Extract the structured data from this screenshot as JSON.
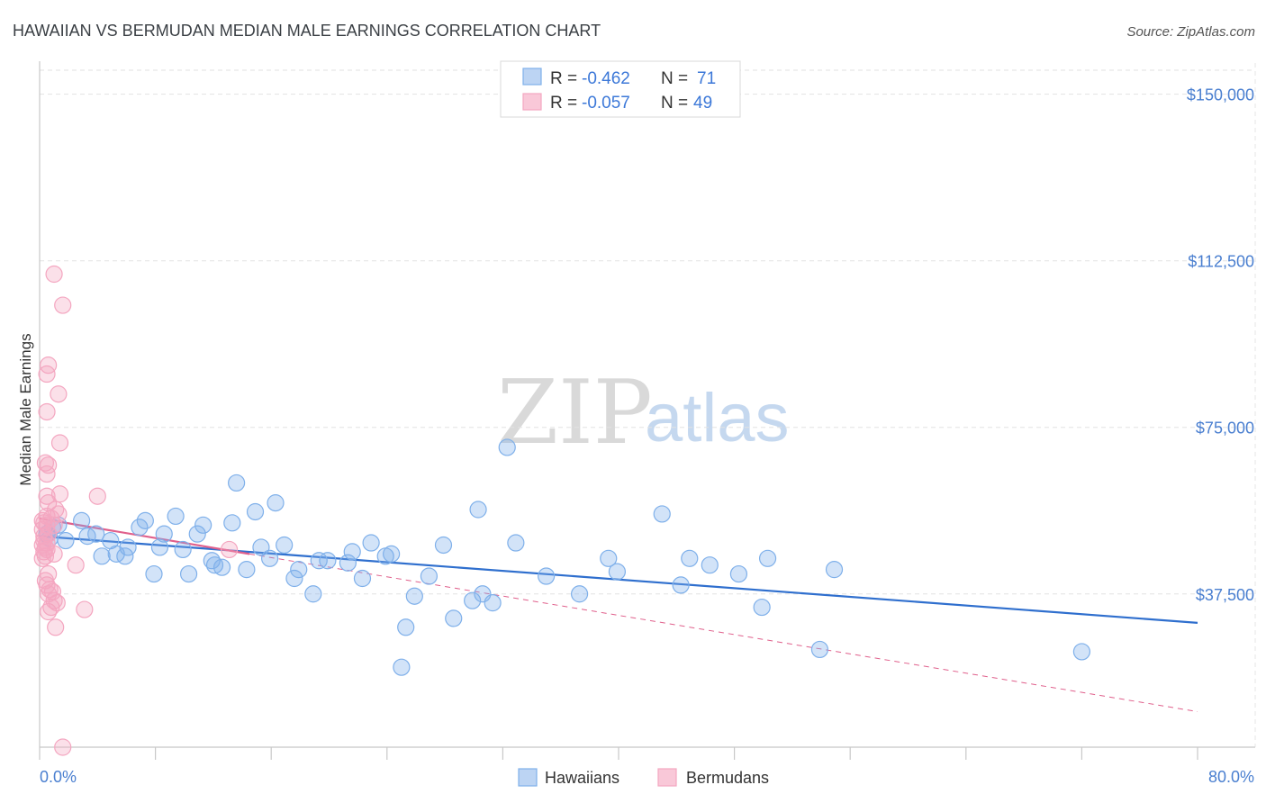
{
  "chart_data": {
    "type": "scatter",
    "title": "HAWAIIAN VS BERMUDAN MEDIAN MALE EARNINGS CORRELATION CHART",
    "source": "Source: ZipAtlas.com",
    "ylabel": "Median Male Earnings",
    "xlabel": "",
    "xlim": [
      0,
      80
    ],
    "ylim": [
      3000,
      155000
    ],
    "x_tick_labels": [
      "0.0%",
      "80.0%"
    ],
    "y_ticks": [
      {
        "value": 150000,
        "label": "$150,000"
      },
      {
        "value": 112500,
        "label": "$112,500"
      },
      {
        "value": 75000,
        "label": "$75,000"
      },
      {
        "value": 37500,
        "label": "$37,500"
      }
    ],
    "watermark": {
      "zip": "ZIP",
      "atlas": "atlas"
    },
    "legend": {
      "rows": [
        {
          "r_label": "R =",
          "r_value": "-0.462",
          "n_label": "N =",
          "n_value": "71"
        },
        {
          "r_label": "R =",
          "r_value": "-0.057",
          "n_label": "N =",
          "n_value": "49"
        }
      ]
    },
    "series": [
      {
        "name": "Hawaiians",
        "color": "#7fb0ea",
        "line_color": "#2f6fce",
        "trend": {
          "x0": 0,
          "y0": 50500,
          "x1": 80,
          "y1": 31000
        },
        "points": [
          [
            0.5,
            51000
          ],
          [
            0.9,
            52500
          ],
          [
            1.3,
            53000
          ],
          [
            1.8,
            49500
          ],
          [
            2.9,
            54000
          ],
          [
            3.3,
            50500
          ],
          [
            3.9,
            51000
          ],
          [
            4.3,
            46000
          ],
          [
            4.9,
            49500
          ],
          [
            5.3,
            46500
          ],
          [
            5.9,
            46000
          ],
          [
            6.1,
            48000
          ],
          [
            6.9,
            52500
          ],
          [
            7.3,
            54000
          ],
          [
            7.9,
            42000
          ],
          [
            8.3,
            48000
          ],
          [
            8.6,
            51000
          ],
          [
            9.4,
            55000
          ],
          [
            9.9,
            47500
          ],
          [
            10.3,
            42000
          ],
          [
            10.9,
            51000
          ],
          [
            11.3,
            53000
          ],
          [
            11.9,
            45000
          ],
          [
            12.1,
            44000
          ],
          [
            12.6,
            43500
          ],
          [
            13.3,
            53500
          ],
          [
            13.6,
            62500
          ],
          [
            14.3,
            43000
          ],
          [
            14.9,
            56000
          ],
          [
            15.3,
            48000
          ],
          [
            15.9,
            45500
          ],
          [
            16.3,
            58000
          ],
          [
            16.9,
            48500
          ],
          [
            17.6,
            41000
          ],
          [
            17.9,
            43000
          ],
          [
            18.9,
            37500
          ],
          [
            19.3,
            45000
          ],
          [
            19.9,
            45000
          ],
          [
            21.3,
            44500
          ],
          [
            21.6,
            47000
          ],
          [
            22.3,
            41000
          ],
          [
            22.9,
            49000
          ],
          [
            23.9,
            46000
          ],
          [
            24.3,
            46500
          ],
          [
            25.0,
            21000
          ],
          [
            25.3,
            30000
          ],
          [
            25.9,
            37000
          ],
          [
            26.9,
            41500
          ],
          [
            27.9,
            48500
          ],
          [
            28.6,
            32000
          ],
          [
            29.9,
            36000
          ],
          [
            30.3,
            56500
          ],
          [
            30.6,
            37500
          ],
          [
            31.3,
            35500
          ],
          [
            32.3,
            70500
          ],
          [
            32.9,
            49000
          ],
          [
            35.0,
            41500
          ],
          [
            37.3,
            37500
          ],
          [
            39.3,
            45500
          ],
          [
            39.9,
            42500
          ],
          [
            43.0,
            55500
          ],
          [
            44.3,
            39500
          ],
          [
            44.9,
            45500
          ],
          [
            46.3,
            44000
          ],
          [
            48.3,
            42000
          ],
          [
            49.9,
            34500
          ],
          [
            50.3,
            45500
          ],
          [
            53.9,
            25000
          ],
          [
            54.9,
            43000
          ],
          [
            72.0,
            24500
          ],
          [
            0.7,
            50000
          ]
        ]
      },
      {
        "name": "Bermudans",
        "color": "#f4a6c0",
        "line_color": "#e0608c",
        "trend": {
          "x0": 0,
          "y0": 54500,
          "x1": 14.5,
          "y1": 46500
        },
        "trend_ext": {
          "x0": 14.5,
          "y0": 46500,
          "x1": 80,
          "y1": 11000
        },
        "points": [
          [
            1.0,
            109500
          ],
          [
            1.6,
            102500
          ],
          [
            0.6,
            89000
          ],
          [
            0.5,
            87000
          ],
          [
            1.3,
            82500
          ],
          [
            0.5,
            78500
          ],
          [
            1.4,
            71500
          ],
          [
            0.4,
            67000
          ],
          [
            0.6,
            66500
          ],
          [
            0.5,
            64500
          ],
          [
            1.4,
            60000
          ],
          [
            4.0,
            59500
          ],
          [
            0.5,
            59500
          ],
          [
            0.6,
            58000
          ],
          [
            1.1,
            56500
          ],
          [
            1.3,
            55500
          ],
          [
            0.5,
            55000
          ],
          [
            0.8,
            54500
          ],
          [
            0.2,
            54000
          ],
          [
            0.3,
            53500
          ],
          [
            0.5,
            53000
          ],
          [
            1.0,
            53000
          ],
          [
            0.2,
            52000
          ],
          [
            0.6,
            51000
          ],
          [
            0.3,
            50500
          ],
          [
            0.5,
            49000
          ],
          [
            0.2,
            48500
          ],
          [
            0.4,
            48000
          ],
          [
            0.5,
            47500
          ],
          [
            0.3,
            47000
          ],
          [
            1.0,
            46500
          ],
          [
            0.4,
            46000
          ],
          [
            0.2,
            45500
          ],
          [
            13.1,
            47500
          ],
          [
            2.5,
            44000
          ],
          [
            0.6,
            42000
          ],
          [
            0.4,
            40500
          ],
          [
            0.5,
            39500
          ],
          [
            0.7,
            38500
          ],
          [
            0.9,
            38000
          ],
          [
            0.6,
            37500
          ],
          [
            1.0,
            36000
          ],
          [
            1.2,
            35500
          ],
          [
            0.8,
            34500
          ],
          [
            0.6,
            33500
          ],
          [
            3.1,
            34000
          ],
          [
            1.1,
            30000
          ],
          [
            1.6,
            3000
          ],
          [
            0.3,
            49500
          ]
        ]
      }
    ]
  }
}
